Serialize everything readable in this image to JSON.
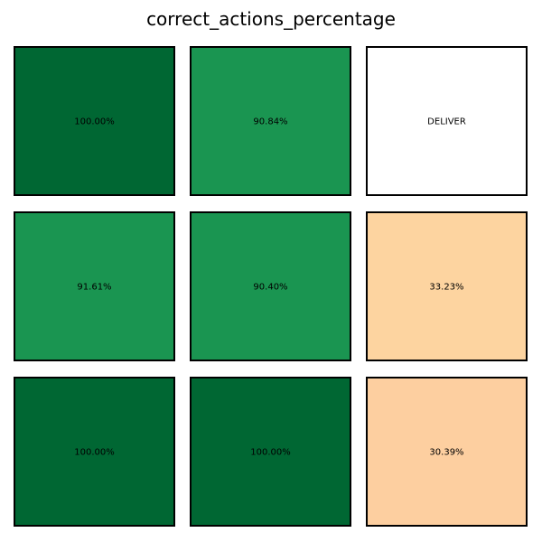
{
  "chart_data": {
    "type": "heatmap",
    "title": "correct_actions_percentage",
    "grid": false,
    "rows": 3,
    "cols": 3,
    "cells": [
      [
        {
          "label": "100.00%",
          "value": 100.0,
          "color": "#006733"
        },
        {
          "label": "90.84%",
          "value": 90.84,
          "color": "#1a9551"
        },
        {
          "label": "DELIVER",
          "value": null,
          "color": "#ffffff"
        }
      ],
      [
        {
          "label": "91.61%",
          "value": 91.61,
          "color": "#1a9551"
        },
        {
          "label": "90.40%",
          "value": 90.4,
          "color": "#1a9551"
        },
        {
          "label": "33.23%",
          "value": 33.23,
          "color": "#fdd4a0"
        }
      ],
      [
        {
          "label": "100.00%",
          "value": 100.0,
          "color": "#006733"
        },
        {
          "label": "100.00%",
          "value": 100.0,
          "color": "#006733"
        },
        {
          "label": "30.39%",
          "value": 30.39,
          "color": "#fdcfa0"
        }
      ]
    ]
  }
}
